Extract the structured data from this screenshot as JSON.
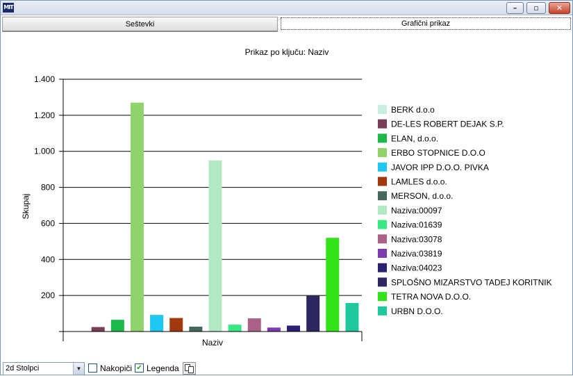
{
  "window": {
    "close_glyph": "✕",
    "max_glyph": "▫",
    "min_glyph": "–",
    "app_icon_text": "MIT"
  },
  "tabs": [
    {
      "label": "Seštevki",
      "active": false
    },
    {
      "label": "Grafični prikaz",
      "active": true
    }
  ],
  "toolbar": {
    "chart_type_value": "2d Stolpci",
    "stack_label": "Nakopiči",
    "stack_checked": false,
    "legend_label": "Legenda",
    "legend_checked": true,
    "copy_icon": "copy-icon"
  },
  "chart_data": {
    "type": "bar",
    "title": "Prikaz po ključu: Naziv",
    "xlabel": "Naziv",
    "ylabel": "Skupaj",
    "ylim": [
      0,
      1400
    ],
    "yticks": [
      200,
      400,
      600,
      800,
      1000,
      1200,
      1400
    ],
    "ytick_labels": [
      "200",
      "400",
      "600",
      "800",
      "1.000",
      "1.200",
      "1.400"
    ],
    "grid": true,
    "legend_position": "right",
    "series": [
      {
        "name": "BERK d.o.o",
        "value": 0,
        "color": "#c8eee2"
      },
      {
        "name": "DE-LES ROBERT DEJAK S.P.",
        "value": 25,
        "color": "#7a3f58"
      },
      {
        "name": "ELAN, d.o.o.",
        "value": 65,
        "color": "#1cb84a"
      },
      {
        "name": "ERBO STOPNICE D.O.O",
        "value": 1270,
        "color": "#8fd36a"
      },
      {
        "name": "JAVOR IPP  D.O.O. PIVKA",
        "value": 92,
        "color": "#1ec7f2"
      },
      {
        "name": "LAMLES d.o.o.",
        "value": 75,
        "color": "#a2380e"
      },
      {
        "name": "MERSON, d.o.o.",
        "value": 27,
        "color": "#45675d"
      },
      {
        "name": "Naziva:00097",
        "value": 950,
        "color": "#b3e8c4"
      },
      {
        "name": "Naziva:01639",
        "value": 38,
        "color": "#38e883"
      },
      {
        "name": "Naziva:03078",
        "value": 73,
        "color": "#ab6287"
      },
      {
        "name": "Naziva:03819",
        "value": 22,
        "color": "#7c3bb1"
      },
      {
        "name": "Naziva:04023",
        "value": 33,
        "color": "#2b2171"
      },
      {
        "name": "SPLOŠNO MIZARSTVO TADEJ KORITNIK",
        "value": 198,
        "color": "#2d2761"
      },
      {
        "name": "TETRA NOVA D.O.O.",
        "value": 520,
        "color": "#33e31a"
      },
      {
        "name": "URBN D.O.O.",
        "value": 158,
        "color": "#1fc79d"
      }
    ]
  }
}
